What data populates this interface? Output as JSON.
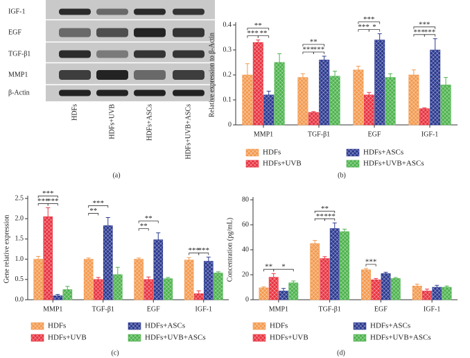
{
  "panel_labels": [
    "(a)",
    "(b)",
    "(c)",
    "(d)"
  ],
  "blot": {
    "rows": [
      "IGF-1",
      "EGF",
      "TGF-β1",
      "MMP1",
      "β-Actin"
    ],
    "lanes": [
      "HDFs",
      "HDFs+UVB",
      "HDFs+ASCs",
      "HDFs+UVB+ASCs"
    ]
  },
  "chart_data": [
    {
      "type": "bar",
      "y_label": "Relative expression to β-Actin",
      "categories": [
        "MMP1",
        "TGF-β1",
        "EGF",
        "IGF-1"
      ],
      "ylim": [
        0,
        0.4
      ],
      "yticks": [
        0,
        0.1,
        0.2,
        0.3,
        0.4
      ],
      "series": [
        {
          "name": "HDFs",
          "color": "#f39a4f",
          "values": [
            0.2,
            0.19,
            0.22,
            0.2
          ],
          "errors": [
            0.045,
            0.015,
            0.015,
            0.02
          ]
        },
        {
          "name": "HDFs+UVB",
          "color": "#e83340",
          "values": [
            0.33,
            0.05,
            0.12,
            0.065
          ],
          "errors": [
            0.01,
            0.003,
            0.01,
            0.003
          ]
        },
        {
          "name": "HDFs+ASCs",
          "color": "#2b3990",
          "values": [
            0.12,
            0.26,
            0.34,
            0.3
          ],
          "errors": [
            0.015,
            0.015,
            0.025,
            0.045
          ]
        },
        {
          "name": "HDFs+UVB+ASCs",
          "color": "#4db34d",
          "values": [
            0.25,
            0.195,
            0.19,
            0.16
          ],
          "errors": [
            0.035,
            0.02,
            0.015,
            0.03
          ]
        }
      ],
      "annotations": [
        {
          "text": "***",
          "category": 0,
          "from": 0,
          "to": 1
        },
        {
          "text": "**",
          "category": 0,
          "from": 1,
          "to": 2
        },
        {
          "text": "**",
          "category": 0,
          "from": 0,
          "to": 2
        },
        {
          "text": "***",
          "category": 1,
          "from": 0,
          "to": 1
        },
        {
          "text": "***",
          "category": 1,
          "from": 1,
          "to": 2
        },
        {
          "text": "**",
          "category": 1,
          "from": 0,
          "to": 2
        },
        {
          "text": "***",
          "category": 2,
          "from": 0,
          "to": 1
        },
        {
          "text": "*",
          "category": 2,
          "from": 1,
          "to": 2
        },
        {
          "text": "***",
          "category": 2,
          "from": 0,
          "to": 2
        },
        {
          "text": "***",
          "category": 3,
          "from": 0,
          "to": 1
        },
        {
          "text": "***",
          "category": 3,
          "from": 1,
          "to": 2
        },
        {
          "text": "***",
          "category": 3,
          "from": 0,
          "to": 2
        }
      ]
    },
    {
      "type": "bar",
      "y_label": "Gene relative expression",
      "categories": [
        "MMP1",
        "TGF-β1",
        "EGF",
        "IGF-1"
      ],
      "ylim": [
        0,
        2.5
      ],
      "yticks": [
        {
          "value": 0,
          "label": "0.0"
        },
        0.5,
        {
          "value": 1,
          "label": "1.0"
        },
        1.5,
        {
          "value": 2,
          "label": "2.0"
        },
        2.5
      ],
      "series": [
        {
          "name": "HDFs",
          "color": "#f39a4f",
          "values": [
            1.0,
            1.0,
            1.0,
            0.98
          ],
          "errors": [
            0.07,
            0.03,
            0.03,
            0.06
          ]
        },
        {
          "name": "HDFs+UVB",
          "color": "#e83340",
          "values": [
            2.05,
            0.5,
            0.5,
            0.15
          ],
          "errors": [
            0.22,
            0.05,
            0.06,
            0.07
          ]
        },
        {
          "name": "HDFs+ASCs",
          "color": "#2b3990",
          "values": [
            0.1,
            1.83,
            1.48,
            0.95
          ],
          "errors": [
            0.03,
            0.2,
            0.17,
            0.1
          ]
        },
        {
          "name": "HDFs+UVB+ASCs",
          "color": "#4db34d",
          "values": [
            0.25,
            0.62,
            0.52,
            0.66
          ],
          "errors": [
            0.08,
            0.18,
            0.03,
            0.03
          ]
        }
      ],
      "annotations": [
        {
          "text": "***",
          "category": 0,
          "from": 0,
          "to": 1
        },
        {
          "text": "***",
          "category": 0,
          "from": 1,
          "to": 2
        },
        {
          "text": "***",
          "category": 0,
          "from": 0,
          "to": 2
        },
        {
          "text": "**",
          "category": 1,
          "from": 0,
          "to": 1
        },
        {
          "text": "***",
          "category": 1,
          "from": 0,
          "to": 2
        },
        {
          "text": "**",
          "category": 2,
          "from": 0,
          "to": 1
        },
        {
          "text": "**",
          "category": 2,
          "from": 0,
          "to": 2
        },
        {
          "text": "***",
          "category": 3,
          "from": 0,
          "to": 1
        },
        {
          "text": "***",
          "category": 3,
          "from": 1,
          "to": 2
        }
      ]
    },
    {
      "type": "bar",
      "y_label": "Concentration (pg/mL)",
      "categories": [
        "MMP1",
        "TGF-β1",
        "EGF",
        "IGF-1"
      ],
      "ylim": [
        0,
        80
      ],
      "yticks": [
        0,
        20,
        40,
        60,
        80
      ],
      "series": [
        {
          "name": "HDFs",
          "color": "#f39a4f",
          "values": [
            9.5,
            45,
            24,
            11
          ],
          "errors": [
            0.8,
            2.5,
            1,
            1.5
          ]
        },
        {
          "name": "HDFs+UVB",
          "color": "#e83340",
          "values": [
            18,
            33,
            16,
            7
          ],
          "errors": [
            3,
            1.5,
            1,
            1.5
          ]
        },
        {
          "name": "HDFs+ASCs",
          "color": "#2b3990",
          "values": [
            7,
            57,
            21,
            10
          ],
          "errors": [
            2,
            4.5,
            1,
            1.5
          ]
        },
        {
          "name": "HDFs+UVB+ASCs",
          "color": "#4db34d",
          "values": [
            13.5,
            54.5,
            17,
            10
          ],
          "errors": [
            1.5,
            2,
            0.8,
            1
          ]
        }
      ],
      "annotations": [
        {
          "text": "**",
          "category": 0,
          "from": 0,
          "to": 1
        },
        {
          "text": "*",
          "category": 0,
          "from": 1,
          "to": 3
        },
        {
          "text": "**",
          "category": 1,
          "from": 0,
          "to": 1
        },
        {
          "text": "***",
          "category": 1,
          "from": 1,
          "to": 2
        },
        {
          "text": "**",
          "category": 1,
          "from": 0,
          "to": 2
        },
        {
          "text": "***",
          "category": 2,
          "from": 0,
          "to": 1
        }
      ]
    }
  ]
}
